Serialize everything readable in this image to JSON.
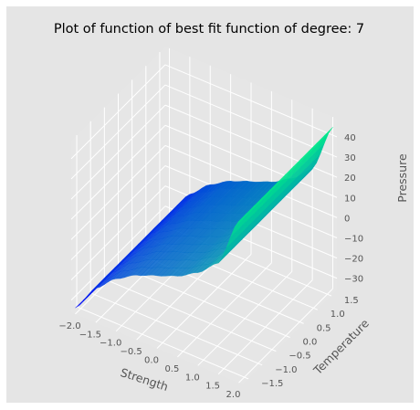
{
  "chart_data": {
    "type": "surface",
    "title": "Plot of function of best fit function of degree: 7",
    "xlabel": "Strength",
    "ylabel": "Temperature",
    "zlabel": "Pressure",
    "x_ticks": [
      "−2.0",
      "−1.5",
      "−1.0",
      "−0.5",
      "0.0",
      "0.5",
      "1.0",
      "1.5",
      "2.0"
    ],
    "y_ticks": [
      "−1.5",
      "−1.0",
      "−0.5",
      "0.0",
      "0.5",
      "1.0",
      "1.5"
    ],
    "z_ticks": [
      "−30",
      "−20",
      "−10",
      "0",
      "10",
      "20",
      "30",
      "40"
    ],
    "xlim": [
      -2.1,
      2.1
    ],
    "ylim": [
      -1.7,
      1.7
    ],
    "zlim": [
      -36,
      49
    ],
    "grid": true,
    "colormap": "winter",
    "surface_profile_x": [
      -2.0,
      -1.5,
      -1.0,
      -0.5,
      0.0,
      0.5,
      1.0,
      1.5,
      2.0
    ],
    "surface_profile_z": [
      -33,
      -19,
      -10,
      -4,
      0,
      4,
      10,
      19,
      44
    ],
    "surface_y_range": [
      -1.7,
      1.7
    ]
  },
  "colors": {
    "figure_background": "#ffffff",
    "panel_background": "#e5e5e5",
    "pane_background": "#e6e6e6",
    "grid": "#ffffff",
    "text": "#555555",
    "title": "#000000",
    "colormap_low": "#0000ff",
    "colormap_high": "#00ff80"
  }
}
